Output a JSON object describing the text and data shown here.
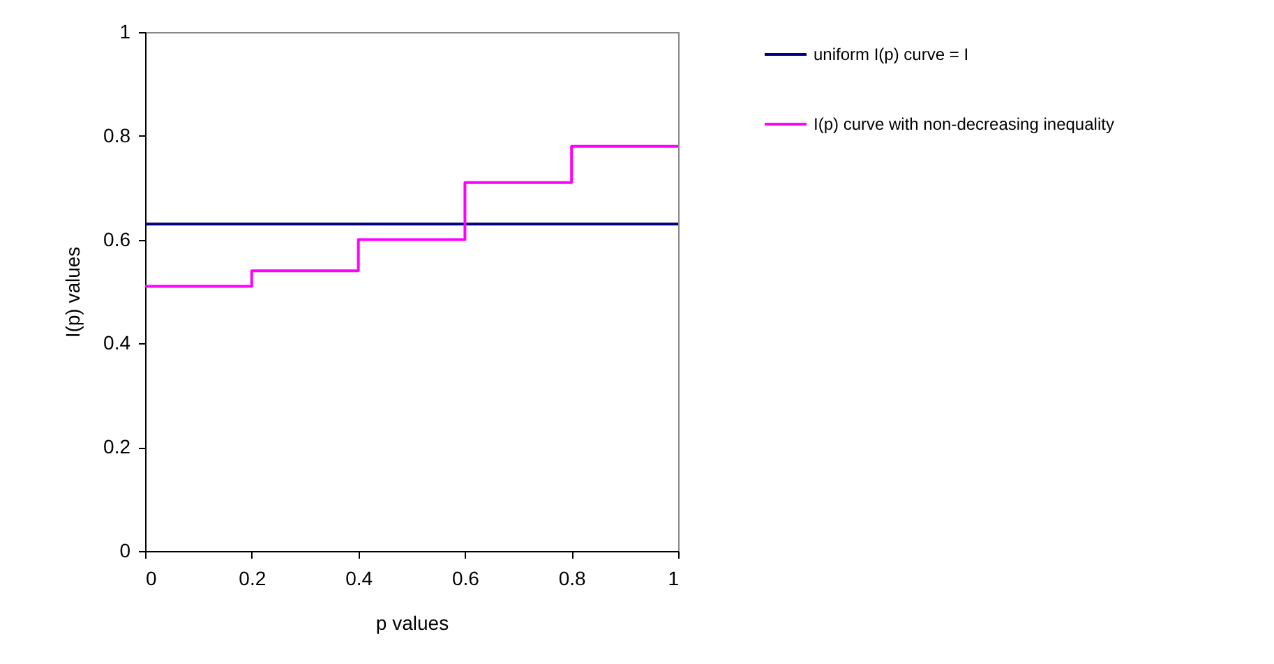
{
  "chart_data": {
    "type": "line",
    "xlabel": "p values",
    "ylabel": "I(p) values",
    "xlim": [
      0,
      1
    ],
    "xticks": [
      0,
      0.2,
      0.4,
      0.6,
      0.8,
      1
    ],
    "ylim": [
      0,
      1
    ],
    "yticks": [
      0,
      0.2,
      0.4,
      0.6,
      0.8,
      1
    ],
    "grid": false,
    "legend": "right",
    "marker": "none",
    "series": [
      {
        "name": "uniform I(p) curve = I",
        "color": "#000080",
        "x": [
          0,
          0.2,
          0.4,
          0.6,
          0.8,
          1
        ],
        "values": [
          0.63,
          0.63,
          0.63,
          0.63,
          0.63,
          0.63
        ]
      },
      {
        "name": "I(p) curve with non-decreasing inequality",
        "color": "#ff00ff",
        "type": "step",
        "x": [
          0,
          0.2,
          0.4,
          0.6,
          0.8,
          1
        ],
        "values": [
          0.51,
          0.54,
          0.6,
          0.71,
          0.78,
          0.78
        ]
      }
    ]
  }
}
